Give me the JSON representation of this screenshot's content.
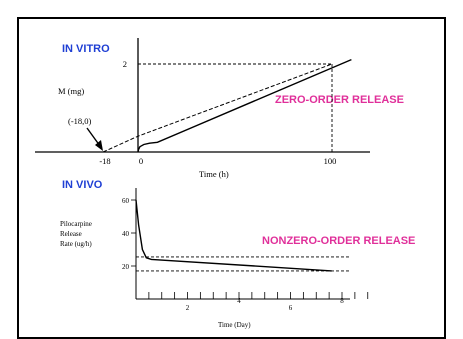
{
  "colors": {
    "panel_heading": "#1f3fd4",
    "release_label": "#e0309a",
    "ink": "#000000",
    "frame": "#000000"
  },
  "chart_data": [
    {
      "type": "line",
      "title": "IN VITRO",
      "annotation": "ZERO-ORDER RELEASE",
      "xlabel": "Time (h)",
      "ylabel": "M (mg)",
      "x_ticks": [
        "-18",
        "0",
        "100"
      ],
      "y_ticks": [
        "2"
      ],
      "point_label": "(-18,0)",
      "xlim": [
        -18,
        110
      ],
      "ylim": [
        0,
        2.1
      ],
      "series": [
        {
          "style": "solid",
          "x": [
            0,
            0.3,
            1,
            3,
            6,
            10,
            110
          ],
          "y": [
            0,
            0.06,
            0.12,
            0.17,
            0.2,
            0.22,
            2.1
          ]
        },
        {
          "style": "dashed",
          "x": [
            -18,
            0,
            100
          ],
          "y": [
            0,
            0.36,
            2
          ]
        }
      ],
      "reference_lines": [
        {
          "axis": "x",
          "value": 100,
          "style": "dashed"
        },
        {
          "axis": "y",
          "value": 2,
          "style": "dashed"
        }
      ]
    },
    {
      "type": "line",
      "title": "IN VIVO",
      "annotation": "NONZERO-ORDER RELEASE",
      "xlabel": "Time (Day)",
      "ylabel": [
        "Pilocarpine",
        "Release",
        "Rate (ug/h)"
      ],
      "x_ticks": [
        "2",
        "4",
        "6",
        "8"
      ],
      "y_ticks": [
        "60",
        "40",
        "20"
      ],
      "xlim": [
        0,
        8.8
      ],
      "ylim": [
        10,
        62
      ],
      "series": [
        {
          "style": "solid",
          "x": [
            0,
            0.1,
            0.25,
            0.4,
            0.6,
            7.6
          ],
          "y": [
            60,
            45,
            30,
            25,
            24,
            17
          ]
        }
      ],
      "reference_lines": [
        {
          "axis": "y",
          "value": 25.5,
          "style": "dashed"
        },
        {
          "axis": "y",
          "value": 17,
          "style": "dashed"
        }
      ]
    }
  ]
}
